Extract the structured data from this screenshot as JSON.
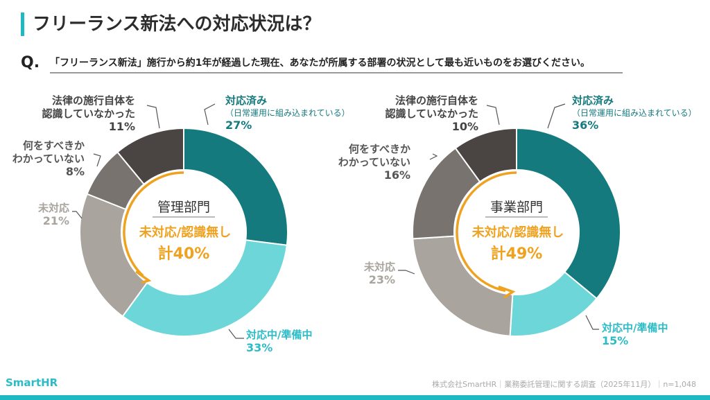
{
  "title": "フリーランス新法への対応状況は？",
  "question_mark": "Q.",
  "question": "「フリーランス新法」施行から約1年が経過した現在、あなたが所属する部署の状況として最も近いものをお選びください。",
  "footer": {
    "logo": "SmartHR",
    "source": "株式会社SmartHR｜業務委託管理に関する調査（2025年11月）｜n=1,048"
  },
  "colors": {
    "accent": "#1fb9c3",
    "orange": "#eea21f"
  },
  "chart_data": [
    {
      "type": "pie",
      "title": "管理部門",
      "center_label": "未対応/認識無し",
      "center_total": "計40%",
      "slices": [
        {
          "label": "対応済み",
          "sub": "（日常運用に組み込まれている）",
          "value": 27,
          "color": "#157a7e"
        },
        {
          "label": "対応中/準備中",
          "value": 33,
          "color": "#6dd6d9"
        },
        {
          "label": "未対応",
          "value": 21,
          "color": "#a9a49e"
        },
        {
          "label": "何をすべきか\nわかっていない",
          "value": 8,
          "color": "#78736e"
        },
        {
          "label": "法律の施行自体を\n認識していなかった",
          "value": 11,
          "color": "#4a4542"
        }
      ]
    },
    {
      "type": "pie",
      "title": "事業部門",
      "center_label": "未対応/認識無し",
      "center_total": "計49%",
      "slices": [
        {
          "label": "対応済み",
          "sub": "（日常運用に組み込まれている）",
          "value": 36,
          "color": "#157a7e"
        },
        {
          "label": "対応中/準備中",
          "value": 15,
          "color": "#6dd6d9"
        },
        {
          "label": "未対応",
          "value": 23,
          "color": "#a9a49e"
        },
        {
          "label": "何をすべきか\nわかっていない",
          "value": 16,
          "color": "#78736e"
        },
        {
          "label": "法律の施行自体を\n認識していなかった",
          "value": 10,
          "color": "#4a4542"
        }
      ]
    }
  ]
}
